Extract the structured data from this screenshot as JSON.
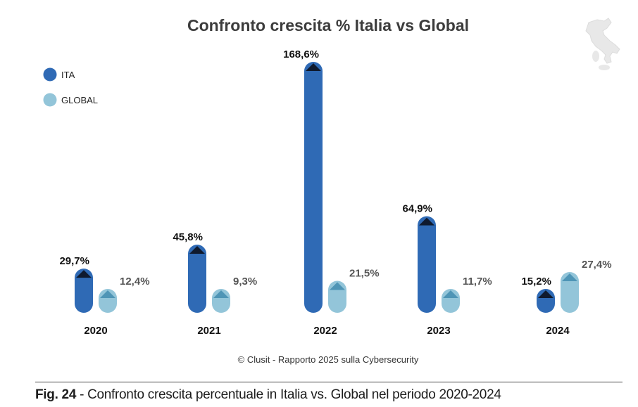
{
  "colors": {
    "ita": "#2f6ab5",
    "global": "#93c5d9",
    "ita_cap": "#0f1a2e",
    "global_cap": "#4f95b6",
    "title": "#3c3c3c",
    "value_ita": "#111111",
    "value_global": "#555555"
  },
  "chart_data": {
    "type": "bar",
    "title": "Confronto crescita % Italia vs Global",
    "categories": [
      "2020",
      "2021",
      "2022",
      "2023",
      "2024"
    ],
    "series": [
      {
        "name": "ITA",
        "values": [
          29.7,
          45.8,
          168.6,
          64.9,
          15.2
        ],
        "labels": [
          "29,7%",
          "45,8%",
          "168,6%",
          "64,9%",
          "15,2%"
        ]
      },
      {
        "name": "GLOBAL",
        "values": [
          12.4,
          9.3,
          21.5,
          11.7,
          27.4
        ],
        "labels": [
          "12,4%",
          "9,3%",
          "21,5%",
          "11,7%",
          "27,4%"
        ]
      }
    ],
    "legend_position": "top-left",
    "ylim": [
      0,
      168.6
    ],
    "xlabel": "",
    "ylabel": "",
    "grid": false
  },
  "source_note": "© Clusit - Rapporto 2025 sulla Cybersecurity",
  "caption": {
    "label": "Fig. 24",
    "text": " - Confronto crescita percentuale in Italia vs. Global nel periodo 2020-2024"
  },
  "icons": {
    "map": "italy-map-icon"
  }
}
